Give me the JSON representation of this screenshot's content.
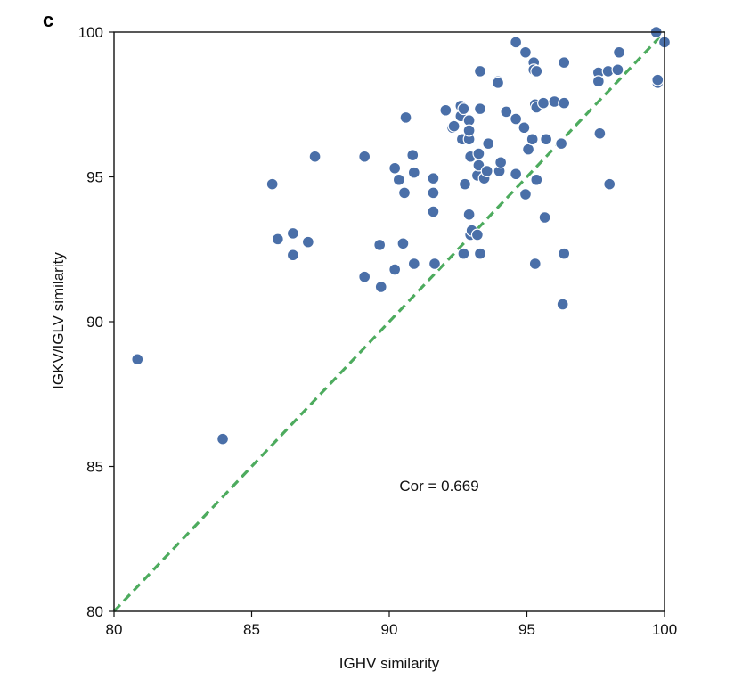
{
  "panel_label": "c",
  "chart_data": {
    "type": "scatter",
    "xlabel": "IGHV similarity",
    "ylabel": "IGKV/IGLV similarity",
    "xlim": [
      80,
      100
    ],
    "ylim": [
      80,
      100
    ],
    "xticks": [
      80,
      85,
      90,
      95,
      100
    ],
    "yticks": [
      80,
      85,
      90,
      95,
      100
    ],
    "grid": false,
    "point_color": "#4a6fa8",
    "reference_line": {
      "from": [
        80,
        80
      ],
      "to": [
        100,
        100
      ],
      "style": "dashed",
      "color": "#4dab5e"
    },
    "annotation": "Cor = 0.669",
    "points": [
      [
        80.85,
        88.7
      ],
      [
        83.95,
        85.95
      ],
      [
        85.75,
        94.75
      ],
      [
        85.95,
        92.85
      ],
      [
        86.5,
        92.3
      ],
      [
        86.5,
        93.05
      ],
      [
        87.05,
        92.75
      ],
      [
        87.3,
        95.7
      ],
      [
        89.1,
        95.7
      ],
      [
        89.1,
        91.55
      ],
      [
        89.65,
        92.65
      ],
      [
        89.7,
        91.2
      ],
      [
        90.2,
        95.3
      ],
      [
        90.2,
        91.8
      ],
      [
        90.35,
        94.9
      ],
      [
        90.55,
        94.45
      ],
      [
        90.5,
        92.7
      ],
      [
        90.6,
        97.05
      ],
      [
        90.85,
        95.75
      ],
      [
        90.9,
        95.15
      ],
      [
        90.9,
        92.0
      ],
      [
        91.6,
        94.95
      ],
      [
        91.6,
        94.45
      ],
      [
        91.6,
        93.8
      ],
      [
        91.65,
        92.0
      ],
      [
        92.05,
        97.3
      ],
      [
        92.3,
        96.7
      ],
      [
        92.35,
        96.75
      ],
      [
        92.6,
        97.1
      ],
      [
        92.6,
        97.45
      ],
      [
        92.7,
        97.35
      ],
      [
        92.65,
        96.3
      ],
      [
        92.7,
        92.35
      ],
      [
        92.75,
        94.75
      ],
      [
        92.9,
        96.95
      ],
      [
        92.9,
        96.3
      ],
      [
        92.9,
        96.6
      ],
      [
        92.9,
        93.7
      ],
      [
        92.95,
        93.0
      ],
      [
        92.95,
        95.7
      ],
      [
        93.0,
        93.15
      ],
      [
        93.2,
        95.05
      ],
      [
        93.2,
        93.0
      ],
      [
        93.25,
        95.4
      ],
      [
        93.25,
        95.8
      ],
      [
        93.3,
        97.35
      ],
      [
        93.3,
        98.65
      ],
      [
        93.3,
        92.35
      ],
      [
        93.45,
        94.95
      ],
      [
        93.55,
        95.2
      ],
      [
        93.6,
        96.15
      ],
      [
        93.95,
        98.3
      ],
      [
        93.95,
        98.25
      ],
      [
        94.0,
        95.2
      ],
      [
        94.05,
        95.5
      ],
      [
        94.25,
        97.25
      ],
      [
        94.6,
        99.65
      ],
      [
        94.6,
        97.0
      ],
      [
        94.6,
        95.1
      ],
      [
        94.95,
        99.3
      ],
      [
        94.9,
        96.7
      ],
      [
        94.95,
        94.4
      ],
      [
        95.05,
        95.95
      ],
      [
        95.2,
        96.3
      ],
      [
        95.25,
        98.95
      ],
      [
        95.25,
        98.7
      ],
      [
        95.35,
        98.65
      ],
      [
        95.3,
        97.5
      ],
      [
        95.35,
        97.4
      ],
      [
        95.35,
        94.9
      ],
      [
        95.3,
        92.0
      ],
      [
        95.6,
        97.55
      ],
      [
        95.65,
        93.6
      ],
      [
        95.7,
        96.3
      ],
      [
        96.0,
        97.6
      ],
      [
        96.25,
        96.15
      ],
      [
        96.35,
        98.95
      ],
      [
        96.35,
        97.55
      ],
      [
        96.35,
        92.35
      ],
      [
        96.3,
        90.6
      ],
      [
        97.6,
        98.6
      ],
      [
        97.6,
        98.3
      ],
      [
        97.65,
        96.5
      ],
      [
        97.95,
        98.65
      ],
      [
        98.0,
        94.75
      ],
      [
        98.3,
        98.7
      ],
      [
        98.35,
        99.3
      ],
      [
        99.7,
        100.0
      ],
      [
        99.75,
        98.25
      ],
      [
        99.75,
        98.35
      ],
      [
        100.0,
        99.65
      ]
    ]
  }
}
